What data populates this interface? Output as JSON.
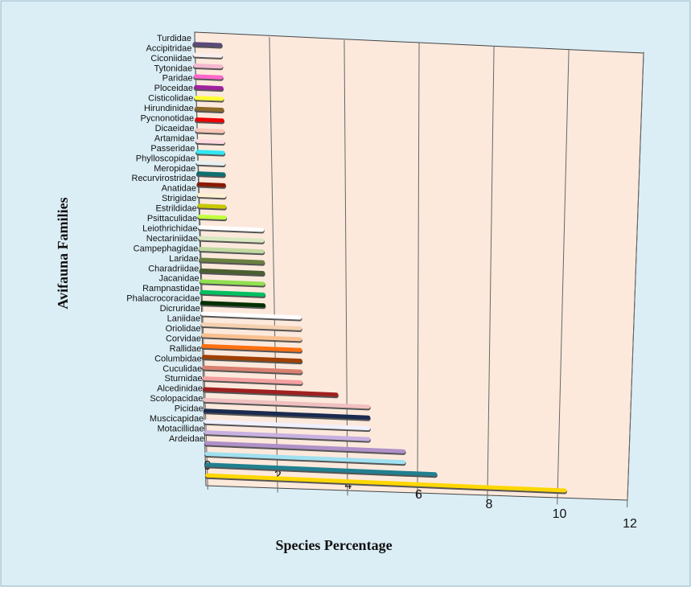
{
  "chart_data": {
    "type": "bar",
    "orientation": "horizontal",
    "x_label": "Species   Percentage",
    "y_label": "Avifauna Families",
    "categories": [
      "Turdidae",
      "Accipitridae",
      "Ciconiidae",
      "Tytonidae",
      "Paridae",
      "Ploceidae",
      "Cisticolidae",
      "Hirundinidae",
      "Pycnonotidae",
      "Dicaeidae",
      "Artamidae",
      "Passeridae",
      "Phylloscopidae",
      "Meropidae",
      "Recurvirostridae",
      "Anatidae",
      "Strigidae",
      "Estrildidae",
      "Psittaculidae",
      "Leiothrichidae",
      "Nectariniidae",
      "Campephagidae",
      "Laridae",
      "Charadriidae",
      "Jacanidae",
      "Rampnastidae",
      "Phalacrocoracidae",
      "Dicruridae",
      "Laniidae",
      "Oriolidae",
      "Corvidae",
      "Rallidae",
      "Columbidae",
      "Cuculidae",
      "Sturnidae",
      "Alcedinidae",
      "Scolopacidae",
      "Picidae",
      "Muscicapidae",
      "Motacillidae",
      "Ardeidae"
    ],
    "values": [
      0.68,
      0.68,
      0.68,
      0.68,
      0.68,
      0.68,
      0.68,
      0.68,
      0.68,
      0.68,
      0.68,
      0.68,
      0.68,
      0.68,
      0.68,
      0.68,
      0.68,
      1.7,
      1.7,
      1.7,
      1.7,
      1.7,
      1.7,
      1.7,
      1.7,
      2.7,
      2.7,
      2.7,
      2.7,
      2.7,
      2.7,
      2.7,
      3.7,
      4.6,
      4.6,
      4.6,
      4.6,
      5.6,
      5.6,
      6.5,
      10.2
    ],
    "colors": [
      "#5b4a7a",
      "#f8eeee",
      "#f4b8d0",
      "#ff66cc",
      "#a020a0",
      "#ffff33",
      "#8b6a2a",
      "#ee0000",
      "#f6c6b6",
      "#ffd8e0",
      "#33e6f0",
      "#e6f0f0",
      "#0f7070",
      "#8b1a00",
      "#fff0d0",
      "#c8c800",
      "#c0ff40",
      "#ffffff",
      "#d8e8c0",
      "#c0d8a0",
      "#6a8040",
      "#4a6030",
      "#90e050",
      "#00c060",
      "#003000",
      "#ffffff",
      "#f4d0b0",
      "#f8c090",
      "#ff7010",
      "#a04000",
      "#d88070",
      "#f4a0a0",
      "#a02020",
      "#f0c0c0",
      "#1a2a50",
      "#f0f0ff",
      "#c8b0e0",
      "#b090c8",
      "#a0e0f0",
      "#208090",
      "#ffd700"
    ],
    "xlim": [
      0,
      12
    ],
    "xticks": [
      0,
      2,
      4,
      6,
      8,
      10,
      12
    ],
    "grid": true
  }
}
